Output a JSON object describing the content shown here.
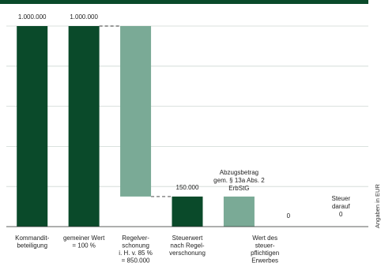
{
  "chart_data": {
    "type": "bar",
    "variant": "waterfall",
    "unit_label": "Angaben in EUR",
    "ylim": [
      0,
      1000000
    ],
    "grid": true,
    "colors": {
      "top_band": "#0a4a2a",
      "dark": "#0a4a2a",
      "light": "#7aaa96",
      "grid": "#cfd8d3",
      "connector": "#333333"
    },
    "bars": [
      {
        "category_lines": [
          "Kommandit-",
          "beteiligung"
        ],
        "start": 0,
        "end": 1000000,
        "value_label": "1.000.000",
        "style": "dark"
      },
      {
        "category_lines": [
          "gemeiner Wert",
          "= 100 %"
        ],
        "start": 0,
        "end": 1000000,
        "value_label": "1.000.000",
        "style": "dark"
      },
      {
        "category_lines": [
          "Regelver-",
          "schonung",
          "i. H. v. 85 %",
          "= 850.000"
        ],
        "start": 150000,
        "end": 1000000,
        "value_label": "",
        "style": "light"
      },
      {
        "category_lines": [
          "Steuerwert",
          "nach Regel-",
          "verschonung"
        ],
        "start": 0,
        "end": 150000,
        "value_label": "150.000",
        "style": "dark"
      },
      {
        "category_lines": [],
        "start": 0,
        "end": 150000,
        "value_label": "",
        "style": "light"
      },
      {
        "category_lines": [],
        "start": 0,
        "end": 0,
        "value_label": "",
        "style": "dark"
      },
      {
        "category_lines": [],
        "start": 0,
        "end": 0,
        "value_label": "",
        "style": "dark"
      }
    ],
    "annotations": [
      {
        "lines": [
          "Abzugsbetrag",
          "gem. § 13a Abs. 2",
          "ErbStG"
        ]
      },
      {
        "lines": [
          "0"
        ]
      },
      {
        "lines": [
          "Steuer",
          "darauf",
          "0"
        ]
      }
    ],
    "extra_category_lines": [
      "Wert des",
      "steuer-",
      "pflichtigen",
      "Erwerbes"
    ]
  }
}
